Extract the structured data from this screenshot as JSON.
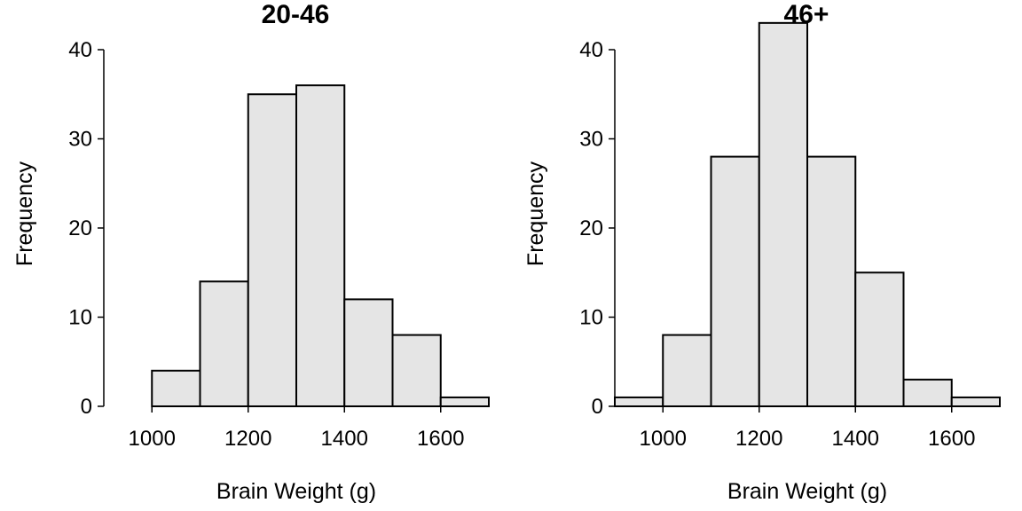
{
  "chart_data": [
    {
      "type": "bar",
      "title": "20-46",
      "xlabel": "Brain Weight (g)",
      "ylabel": "Frequency",
      "bin_edges": [
        1000,
        1100,
        1200,
        1300,
        1400,
        1500,
        1600,
        1700
      ],
      "values": [
        4,
        14,
        35,
        36,
        12,
        8,
        1
      ],
      "xlim": [
        900,
        1700
      ],
      "ylim": [
        0,
        40
      ],
      "xticks": [
        1000,
        1200,
        1400,
        1600
      ],
      "yticks": [
        0,
        10,
        20,
        30,
        40
      ],
      "grid": false
    },
    {
      "type": "bar",
      "title": "46+",
      "xlabel": "Brain Weight (g)",
      "ylabel": "Frequency",
      "bin_edges": [
        900,
        1000,
        1100,
        1200,
        1300,
        1400,
        1500,
        1600,
        1700
      ],
      "values": [
        1,
        8,
        28,
        43,
        28,
        15,
        3,
        1
      ],
      "xlim": [
        900,
        1700
      ],
      "ylim": [
        0,
        40
      ],
      "xticks": [
        1000,
        1200,
        1400,
        1600
      ],
      "yticks": [
        0,
        10,
        20,
        30,
        40
      ],
      "grid": false
    }
  ]
}
